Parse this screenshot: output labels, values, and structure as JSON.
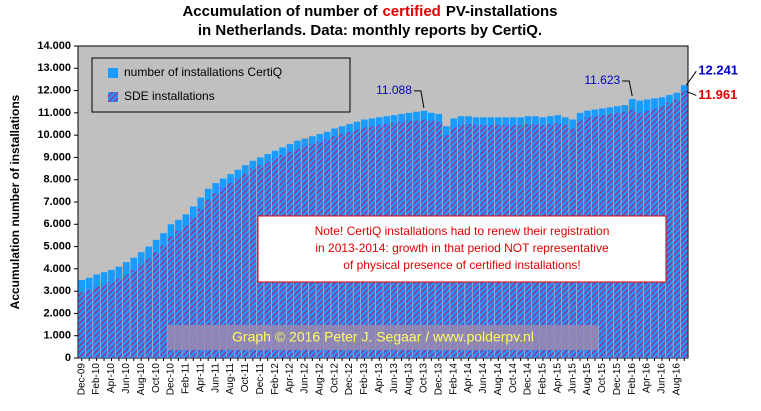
{
  "chart_data": {
    "type": "bar",
    "title_parts": [
      "Accumulation of number of",
      "certified",
      "PV-installations"
    ],
    "title_highlight_color": "#e00000",
    "subtitle": "in Netherlands. Data: monthly reports by CertiQ.",
    "y_label": "Accumulation number of installations",
    "categories": [
      "Dec-09",
      null,
      "Feb-10",
      null,
      "Apr-10",
      null,
      "Jun-10",
      null,
      "Aug-10",
      null,
      "Oct-10",
      null,
      "Dec-10",
      null,
      "Feb-11",
      null,
      "Apr-11",
      null,
      "Jun-11",
      null,
      "Aug-11",
      null,
      "Oct-11",
      null,
      "Dec-11",
      null,
      "Feb-12",
      null,
      "Apr-12",
      null,
      "Jun-12",
      null,
      "Aug-12",
      null,
      "Oct-12",
      null,
      "Dec-12",
      null,
      "Feb-13",
      null,
      "Apr-13",
      null,
      "Jun-13",
      null,
      "Aug-13",
      null,
      "Oct-13",
      null,
      "Dec-13",
      null,
      "Feb-14",
      null,
      "Apr-14",
      null,
      "Jun-14",
      null,
      "Aug-14",
      null,
      "Oct-14",
      null,
      "Dec-14",
      null,
      "Feb-15",
      null,
      "Apr-15",
      null,
      "Jun-15",
      null,
      "Aug-15",
      null,
      "Oct-15",
      null,
      "Dec-15",
      null,
      "Feb-16",
      null,
      "Apr-16",
      null,
      "Jun-16",
      null,
      "Aug-16",
      null
    ],
    "series": [
      {
        "name": "number of installations CertiQ",
        "color": "#1a9cff",
        "values": [
          3500,
          3600,
          3750,
          3850,
          3950,
          4100,
          4300,
          4500,
          4750,
          5000,
          5300,
          5600,
          6000,
          6200,
          6450,
          6800,
          7200,
          7600,
          7850,
          8050,
          8250,
          8450,
          8650,
          8850,
          9000,
          9150,
          9300,
          9450,
          9600,
          9750,
          9850,
          9950,
          10050,
          10150,
          10300,
          10400,
          10500,
          10600,
          10700,
          10750,
          10800,
          10850,
          10900,
          10950,
          11000,
          11050,
          11088,
          11000,
          10950,
          10400,
          10750,
          10850,
          10850,
          10800,
          10800,
          10800,
          10800,
          10800,
          10800,
          10800,
          10850,
          10850,
          10800,
          10850,
          10900,
          10800,
          10700,
          11000,
          11100,
          11150,
          11200,
          11250,
          11300,
          11350,
          11623,
          11550,
          11600,
          11650,
          11700,
          11800,
          11900,
          12241
        ]
      },
      {
        "name": "SDE installations",
        "color": "#993399",
        "values": [
          2950,
          3050,
          3200,
          3300,
          3400,
          3550,
          3750,
          3950,
          4200,
          4450,
          4750,
          5050,
          5450,
          5700,
          5950,
          6300,
          6700,
          7100,
          7400,
          7650,
          7850,
          8050,
          8250,
          8500,
          8650,
          8800,
          8950,
          9100,
          9250,
          9400,
          9500,
          9600,
          9700,
          9800,
          9950,
          10050,
          10150,
          10250,
          10350,
          10400,
          10450,
          10500,
          10550,
          10600,
          10650,
          10650,
          10700,
          10650,
          10600,
          10000,
          10350,
          10450,
          10500,
          10450,
          10450,
          10450,
          10450,
          10450,
          10450,
          10450,
          10500,
          10500,
          10450,
          10500,
          10550,
          10450,
          10300,
          10650,
          10800,
          10850,
          10900,
          10950,
          11000,
          11050,
          11150,
          11000,
          11100,
          11200,
          11300,
          11450,
          11600,
          11961
        ]
      }
    ],
    "annotations": [
      {
        "text": "11.088",
        "color": "#0000cc"
      },
      {
        "text": "11.623",
        "color": "#0000cc"
      },
      {
        "text": "12.241",
        "color": "#0000cc"
      },
      {
        "text": "11.961",
        "color": "#e00000"
      }
    ],
    "note": [
      "Note! CertiQ installations had to renew their registration",
      "in 2013-2014: growth in that period NOT representative",
      "of physical presence of certified installations!"
    ],
    "credit": "Graph © 2016 Peter J. Segaar / www.polderpv.nl",
    "ylim": [
      0,
      14000
    ],
    "yticks": [
      0,
      {
        "value": 1000,
        "label": "1.000"
      },
      {
        "value": 2000,
        "label": "2.000"
      },
      {
        "value": 3000,
        "label": "3.000"
      },
      {
        "value": 4000,
        "label": "4.000"
      },
      {
        "value": 5000,
        "label": "5.000"
      },
      {
        "value": 6000,
        "label": "6.000"
      },
      {
        "value": 7000,
        "label": "7.000"
      },
      {
        "value": 8000,
        "label": "8.000"
      },
      {
        "value": 9000,
        "label": "9.000"
      },
      {
        "value": 10000,
        "label": "10.000"
      },
      {
        "value": 11000,
        "label": "11.000"
      },
      {
        "value": 12000,
        "label": "12.000"
      },
      {
        "value": 13000,
        "label": "13.000"
      },
      {
        "value": 14000,
        "label": "14.000"
      }
    ],
    "legend": "top-left"
  }
}
